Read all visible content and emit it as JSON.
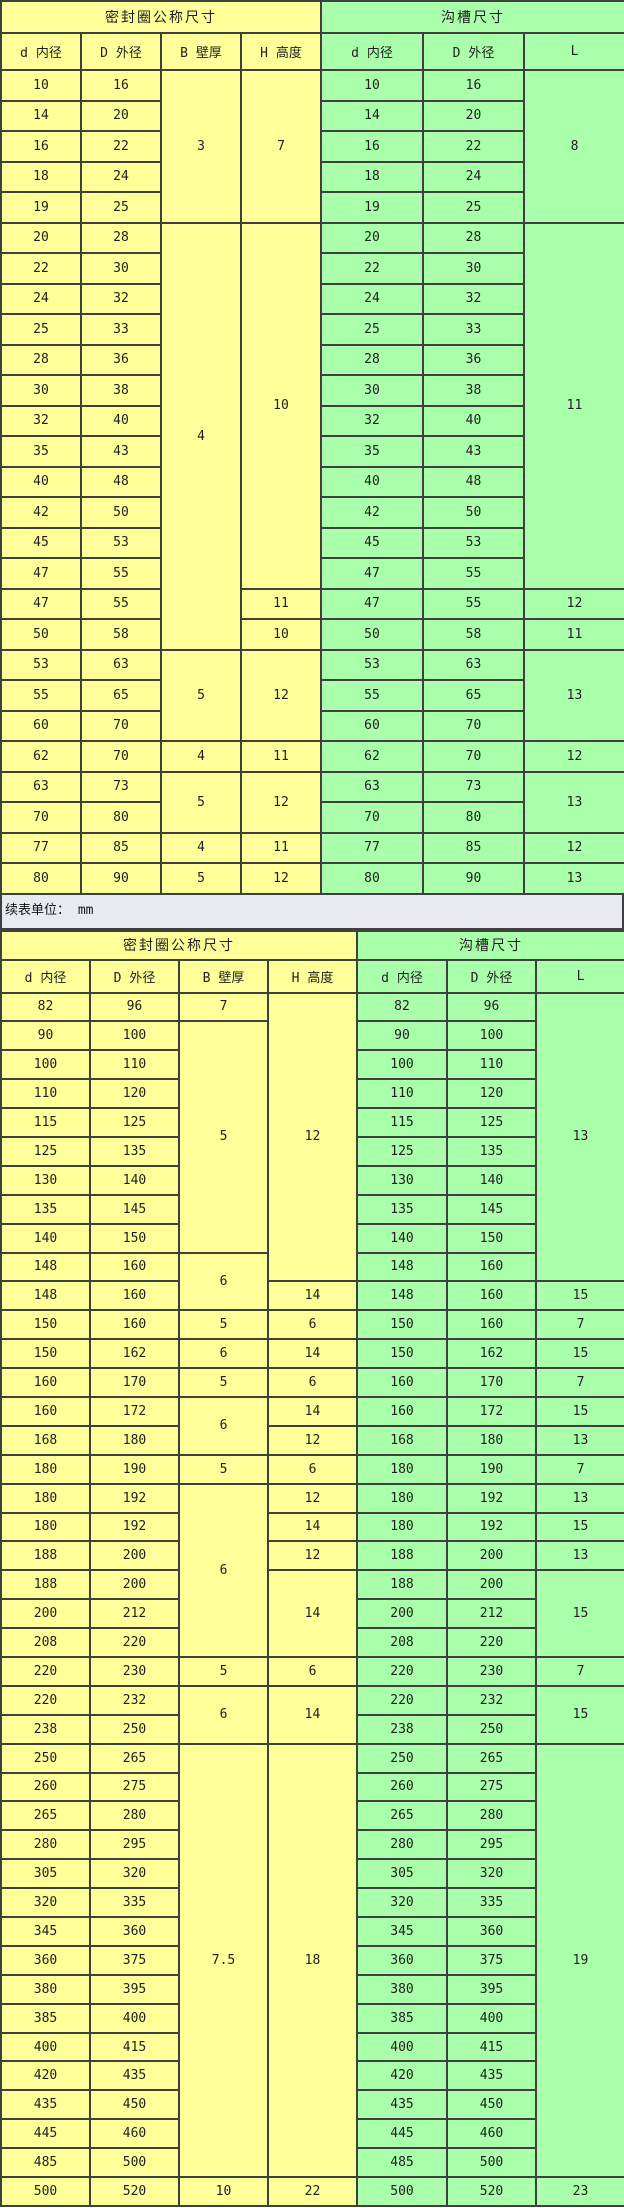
{
  "colors": {
    "seal_section_bg": "#FFFF99",
    "groove_section_bg": "#AAFFAA",
    "band_bg": "#E7EBF0",
    "grid_border": "#3f3f3f",
    "text": "#1f1f1f"
  },
  "band": {
    "label": "续表单位：  mm"
  },
  "table1": {
    "title_left": "密封圈公称尺寸",
    "title_right": "沟槽尺寸",
    "headers_left": [
      "d 内径",
      "D 外径",
      "B 壁厚",
      "H 高度"
    ],
    "headers_right": [
      "d 内径",
      "D 外径",
      "L"
    ],
    "rows": [
      {
        "d": "10",
        "D": "16",
        "B": "3",
        "B_span": 5,
        "H": "7",
        "H_span": 5,
        "L": "8",
        "L_span": 5
      },
      {
        "d": "14",
        "D": "20"
      },
      {
        "d": "16",
        "D": "22"
      },
      {
        "d": "18",
        "D": "24"
      },
      {
        "d": "19",
        "D": "25"
      },
      {
        "d": "20",
        "D": "28",
        "B": "4",
        "B_span": 14,
        "H": "10",
        "H_span": 12,
        "L": "11",
        "L_span": 12
      },
      {
        "d": "22",
        "D": "30"
      },
      {
        "d": "24",
        "D": "32"
      },
      {
        "d": "25",
        "D": "33"
      },
      {
        "d": "28",
        "D": "36"
      },
      {
        "d": "30",
        "D": "38"
      },
      {
        "d": "32",
        "D": "40"
      },
      {
        "d": "35",
        "D": "43"
      },
      {
        "d": "40",
        "D": "48"
      },
      {
        "d": "42",
        "D": "50"
      },
      {
        "d": "45",
        "D": "53"
      },
      {
        "d": "47",
        "D": "55"
      },
      {
        "d": "47",
        "D": "55",
        "H": "11",
        "H_span": 1,
        "L": "12",
        "L_span": 1
      },
      {
        "d": "50",
        "D": "58",
        "H": "10",
        "H_span": 1,
        "L": "11",
        "L_span": 1
      },
      {
        "d": "53",
        "D": "63",
        "B": "5",
        "B_span": 3,
        "H": "12",
        "H_span": 3,
        "L": "13",
        "L_span": 3
      },
      {
        "d": "55",
        "D": "65"
      },
      {
        "d": "60",
        "D": "70"
      },
      {
        "d": "62",
        "D": "70",
        "B": "4",
        "B_span": 1,
        "H": "11",
        "H_span": 1,
        "L": "12",
        "L_span": 1
      },
      {
        "d": "63",
        "D": "73",
        "B": "5",
        "B_span": 2,
        "H": "12",
        "H_span": 2,
        "L": "13",
        "L_span": 2
      },
      {
        "d": "70",
        "D": "80"
      },
      {
        "d": "77",
        "D": "85",
        "B": "4",
        "B_span": 1,
        "H": "11",
        "H_span": 1,
        "L": "12",
        "L_span": 1
      },
      {
        "d": "80",
        "D": "90",
        "B": "5",
        "B_span": 1,
        "H": "12",
        "H_span": 1,
        "L": "13",
        "L_span": 1
      }
    ]
  },
  "table2": {
    "title_left": "密封圈公称尺寸",
    "title_right": "沟槽尺寸",
    "headers_left": [
      "d 内径",
      "D 外径",
      "B 壁厚",
      "H 高度"
    ],
    "headers_right": [
      "d 内径",
      "D 外径",
      "L"
    ],
    "rows": [
      {
        "d": "82",
        "D": "96",
        "B": "7",
        "B_span": 1,
        "H": "12",
        "H_span": 10,
        "L": "13",
        "L_span": 10
      },
      {
        "d": "90",
        "D": "100",
        "B": "5",
        "B_span": 8
      },
      {
        "d": "100",
        "D": "110"
      },
      {
        "d": "110",
        "D": "120"
      },
      {
        "d": "115",
        "D": "125"
      },
      {
        "d": "125",
        "D": "135"
      },
      {
        "d": "130",
        "D": "140"
      },
      {
        "d": "135",
        "D": "145"
      },
      {
        "d": "140",
        "D": "150"
      },
      {
        "d": "148",
        "D": "160",
        "B": "6",
        "B_span": 2
      },
      {
        "d": "148",
        "D": "160",
        "H": "14",
        "H_span": 1,
        "L": "15",
        "L_span": 1
      },
      {
        "d": "150",
        "D": "160",
        "B": "5",
        "B_span": 1,
        "H": "6",
        "H_span": 1,
        "L": "7",
        "L_span": 1
      },
      {
        "d": "150",
        "D": "162",
        "B": "6",
        "B_span": 1,
        "H": "14",
        "H_span": 1,
        "L": "15",
        "L_span": 1
      },
      {
        "d": "160",
        "D": "170",
        "B": "5",
        "B_span": 1,
        "H": "6",
        "H_span": 1,
        "L": "7",
        "L_span": 1
      },
      {
        "d": "160",
        "D": "172",
        "B": "6",
        "B_span": 2,
        "H": "14",
        "H_span": 1,
        "L": "15",
        "L_span": 1
      },
      {
        "d": "168",
        "D": "180",
        "H": "12",
        "H_span": 1,
        "L": "13",
        "L_span": 1
      },
      {
        "d": "180",
        "D": "190",
        "B": "5",
        "B_span": 1,
        "H": "6",
        "H_span": 1,
        "L": "7",
        "L_span": 1
      },
      {
        "d": "180",
        "D": "192",
        "B": "6",
        "B_span": 6,
        "H": "12",
        "H_span": 1,
        "L": "13",
        "L_span": 1
      },
      {
        "d": "180",
        "D": "192",
        "H": "14",
        "H_span": 1,
        "L": "15",
        "L_span": 1
      },
      {
        "d": "188",
        "D": "200",
        "H": "12",
        "H_span": 1,
        "L": "13",
        "L_span": 1
      },
      {
        "d": "188",
        "D": "200",
        "H": "14",
        "H_span": 3,
        "L": "15",
        "L_span": 3
      },
      {
        "d": "200",
        "D": "212"
      },
      {
        "d": "208",
        "D": "220"
      },
      {
        "d": "220",
        "D": "230",
        "B": "5",
        "B_span": 1,
        "H": "6",
        "H_span": 1,
        "L": "7",
        "L_span": 1
      },
      {
        "d": "220",
        "D": "232",
        "B": "6",
        "B_span": 2,
        "H": "14",
        "H_span": 2,
        "L": "15",
        "L_span": 2
      },
      {
        "d": "238",
        "D": "250"
      },
      {
        "d": "250",
        "D": "265",
        "B": "7.5",
        "B_span": 15,
        "H": "18",
        "H_span": 15,
        "L": "19",
        "L_span": 15
      },
      {
        "d": "260",
        "D": "275"
      },
      {
        "d": "265",
        "D": "280"
      },
      {
        "d": "280",
        "D": "295"
      },
      {
        "d": "305",
        "D": "320"
      },
      {
        "d": "320",
        "D": "335"
      },
      {
        "d": "345",
        "D": "360"
      },
      {
        "d": "360",
        "D": "375"
      },
      {
        "d": "380",
        "D": "395"
      },
      {
        "d": "385",
        "D": "400"
      },
      {
        "d": "400",
        "D": "415"
      },
      {
        "d": "420",
        "D": "435"
      },
      {
        "d": "435",
        "D": "450"
      },
      {
        "d": "445",
        "D": "460"
      },
      {
        "d": "485",
        "D": "500"
      },
      {
        "d": "500",
        "D": "520",
        "B": "10",
        "B_span": 1,
        "H": "22",
        "H_span": 1,
        "L": "23",
        "L_span": 1
      }
    ]
  }
}
